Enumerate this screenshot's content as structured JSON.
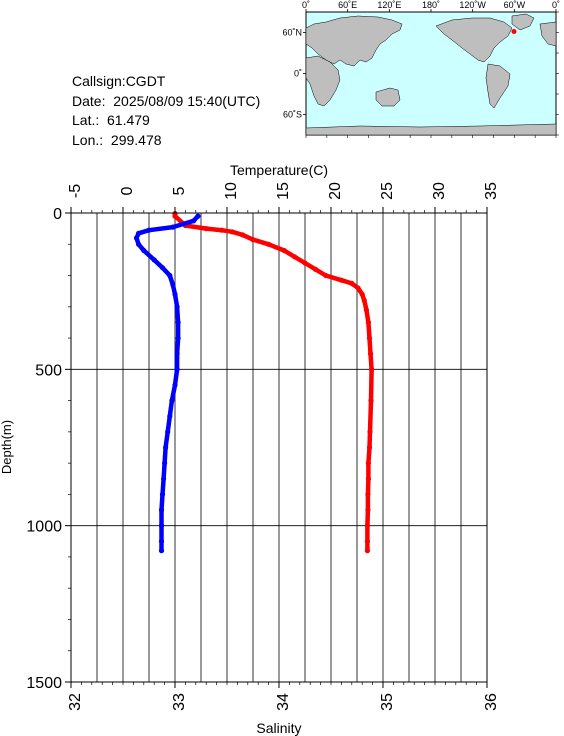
{
  "header": {
    "callsign": "Callsign:CGDT",
    "date": "Date:  2025/08/09 15:40(UTC)",
    "lat": "Lat.:  61.479",
    "lon": "Lon.:  299.478"
  },
  "map": {
    "top_ticks": [
      "0˚",
      "60˚E",
      "120˚E",
      "180˚",
      "120˚W",
      "60˚W",
      "0˚"
    ],
    "left_ticks": [
      "60˚N",
      "0˚",
      "60˚S"
    ],
    "ocean_color": "#ccffff",
    "land_color": "#bebebe",
    "marker_color": "#ff0000",
    "marker_lat": 61.479,
    "marker_lon": 299.478
  },
  "chart_data": {
    "type": "line",
    "top_axis": {
      "label": "Temperature(C)",
      "range": [
        -5,
        35
      ],
      "ticks": [
        "-5",
        "0",
        "5",
        "10",
        "15",
        "20",
        "25",
        "30",
        "35"
      ]
    },
    "bottom_axis": {
      "label": "Salinity",
      "range": [
        32,
        36
      ],
      "ticks": [
        "32",
        "33",
        "34",
        "35",
        "36"
      ]
    },
    "y_axis": {
      "label": "Depth(m)",
      "range": [
        0,
        1500
      ],
      "inverted": true,
      "ticks": [
        "0",
        "500",
        "1000",
        "1500"
      ]
    },
    "grid": true,
    "series": [
      {
        "axis": "temperature",
        "color": "#ff0000",
        "points": [
          [
            5.0,
            2
          ],
          [
            5.0,
            10
          ],
          [
            6.0,
            40
          ],
          [
            8.0,
            50
          ],
          [
            9.5,
            55
          ],
          [
            10.5,
            60
          ],
          [
            11.5,
            70
          ],
          [
            12.5,
            85
          ],
          [
            14.0,
            100
          ],
          [
            15.5,
            120
          ],
          [
            16.5,
            140
          ],
          [
            17.5,
            160
          ],
          [
            18.5,
            180
          ],
          [
            19.5,
            200
          ],
          [
            21.0,
            215
          ],
          [
            22.0,
            225
          ],
          [
            22.6,
            240
          ],
          [
            23.0,
            260
          ],
          [
            23.2,
            280
          ],
          [
            23.4,
            310
          ],
          [
            23.6,
            350
          ],
          [
            23.7,
            400
          ],
          [
            23.8,
            450
          ],
          [
            23.9,
            500
          ],
          [
            23.85,
            600
          ],
          [
            23.75,
            700
          ],
          [
            23.7,
            750
          ],
          [
            23.6,
            800
          ],
          [
            23.6,
            850
          ],
          [
            23.55,
            900
          ],
          [
            23.55,
            950
          ],
          [
            23.5,
            1000
          ],
          [
            23.5,
            1050
          ],
          [
            23.5,
            1080
          ]
        ]
      },
      {
        "axis": "salinity",
        "color": "#0000ff",
        "points": [
          [
            33.22,
            10
          ],
          [
            33.18,
            25
          ],
          [
            32.98,
            45
          ],
          [
            32.75,
            55
          ],
          [
            32.65,
            65
          ],
          [
            32.63,
            80
          ],
          [
            32.65,
            100
          ],
          [
            32.7,
            120
          ],
          [
            32.8,
            150
          ],
          [
            32.88,
            175
          ],
          [
            32.95,
            200
          ],
          [
            32.98,
            230
          ],
          [
            33.0,
            260
          ],
          [
            33.02,
            300
          ],
          [
            33.03,
            350
          ],
          [
            33.03,
            400
          ],
          [
            33.02,
            450
          ],
          [
            33.02,
            500
          ],
          [
            33.0,
            550
          ],
          [
            32.97,
            600
          ],
          [
            32.95,
            650
          ],
          [
            32.93,
            700
          ],
          [
            32.91,
            750
          ],
          [
            32.9,
            800
          ],
          [
            32.89,
            850
          ],
          [
            32.88,
            900
          ],
          [
            32.87,
            950
          ],
          [
            32.87,
            1000
          ],
          [
            32.87,
            1050
          ],
          [
            32.87,
            1080
          ]
        ]
      }
    ]
  }
}
